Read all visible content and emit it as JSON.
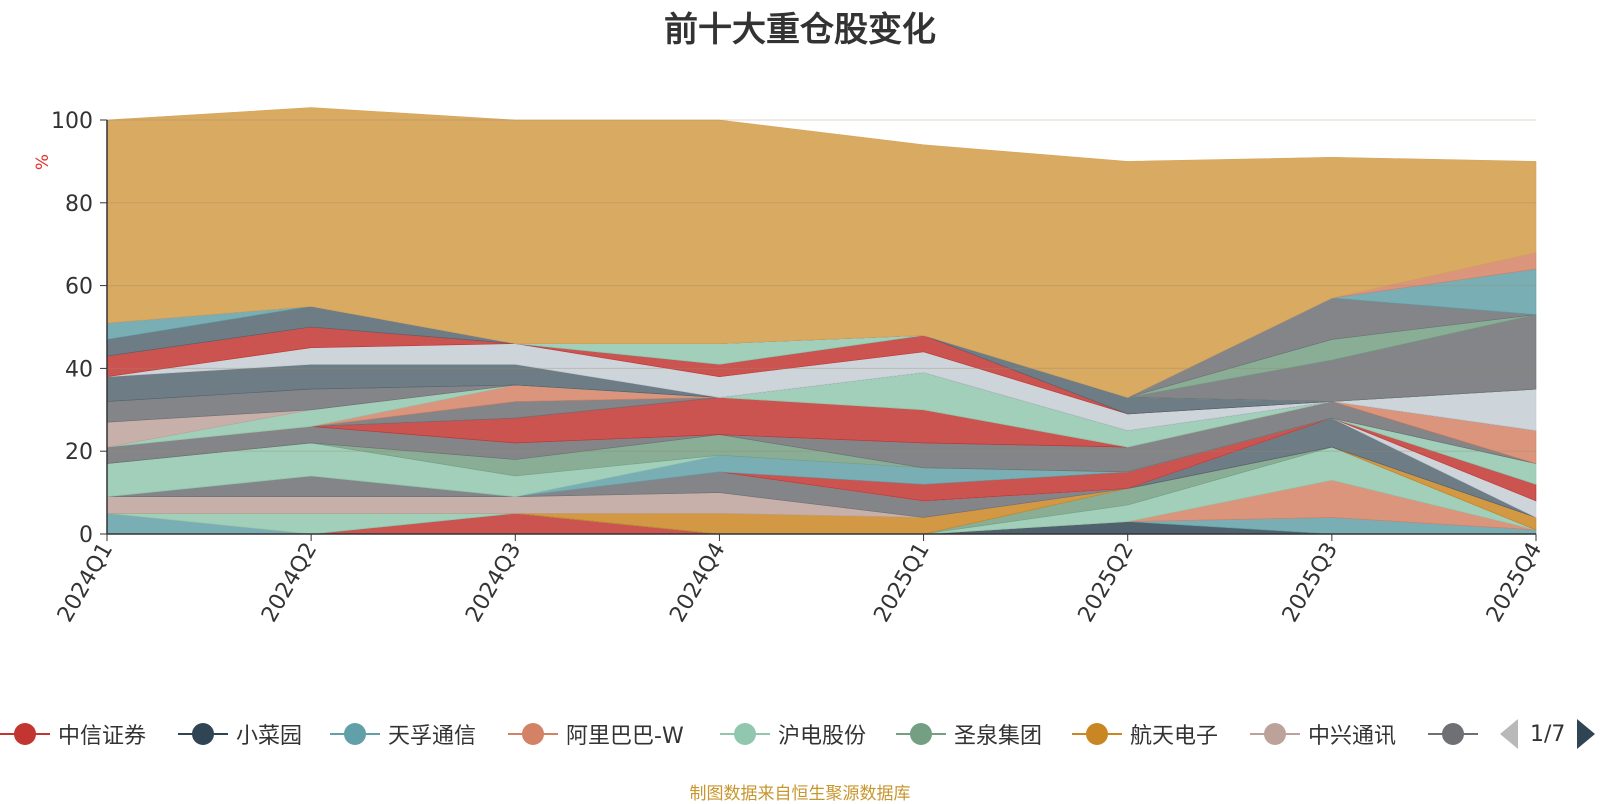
{
  "chart_data": {
    "type": "area",
    "title": "前十大重仓股变化",
    "ylabel": "%",
    "ylim": [
      0,
      100
    ],
    "yticks": [
      0,
      20,
      40,
      60,
      80,
      100
    ],
    "categories": [
      "2024Q1",
      "2024Q2",
      "2024Q3",
      "2024Q4",
      "2025Q1",
      "2025Q2",
      "2025Q3",
      "2025Q4"
    ],
    "series": [
      {
        "name": "中信证券",
        "color": "#c23531",
        "values": [
          0,
          0,
          5,
          0,
          0,
          0,
          0,
          0
        ]
      },
      {
        "name": "小菜园",
        "color": "#2f4554",
        "values": [
          0,
          0,
          0,
          0,
          0,
          3,
          0,
          0
        ]
      },
      {
        "name": "天孚通信",
        "color": "#61a0a8",
        "values": [
          5,
          0,
          0,
          0,
          0,
          0,
          4,
          1
        ]
      },
      {
        "name": "阿里巴巴-W",
        "color": "#d48265",
        "values": [
          0,
          0,
          0,
          0,
          0,
          0,
          9,
          0
        ]
      },
      {
        "name": "沪电股份",
        "color": "#91c7ae",
        "values": [
          0,
          5,
          0,
          0,
          0,
          4,
          8,
          0
        ]
      },
      {
        "name": "圣泉集团",
        "color": "#749f83",
        "values": [
          0,
          0,
          0,
          0,
          0,
          4,
          0,
          0
        ]
      },
      {
        "name": "航天电子",
        "color": "#ca8622",
        "values": [
          0,
          0,
          0,
          5,
          4,
          0,
          0,
          3
        ]
      },
      {
        "name": "中兴通讯",
        "color": "#bda29a",
        "values": [
          4,
          4,
          4,
          5,
          0,
          0,
          0,
          0
        ]
      },
      {
        "name": "",
        "color": "#6e7074",
        "values": [
          0,
          5,
          0,
          5,
          4,
          0,
          0,
          0
        ]
      },
      {
        "name": "",
        "color": "#546570",
        "values": [
          0,
          0,
          0,
          0,
          0,
          0,
          7,
          0
        ]
      },
      {
        "name": "",
        "color": "#c4ccd3",
        "values": [
          0,
          0,
          0,
          0,
          0,
          0,
          0,
          4
        ]
      },
      {
        "name": "",
        "color": "#c23531",
        "values": [
          0,
          0,
          0,
          0,
          4,
          4,
          0,
          4
        ]
      },
      {
        "name": "",
        "color": "#61a0a8",
        "values": [
          0,
          0,
          0,
          4,
          4,
          0,
          0,
          0
        ]
      },
      {
        "name": "",
        "color": "#91c7ae",
        "values": [
          8,
          8,
          5,
          0,
          0,
          0,
          0,
          5
        ]
      },
      {
        "name": "",
        "color": "#749f83",
        "values": [
          0,
          0,
          4,
          5,
          0,
          0,
          0,
          0
        ]
      },
      {
        "name": "",
        "color": "#6e7074",
        "values": [
          4,
          4,
          4,
          0,
          6,
          6,
          4,
          0
        ]
      },
      {
        "name": "",
        "color": "#c23531",
        "values": [
          0,
          0,
          6,
          9,
          8,
          0,
          0,
          0
        ]
      },
      {
        "name": "",
        "color": "#6e7074",
        "values": [
          0,
          0,
          4,
          0,
          0,
          0,
          0,
          0
        ]
      },
      {
        "name": "",
        "color": "#d48265",
        "values": [
          0,
          0,
          4,
          0,
          0,
          0,
          0,
          8
        ]
      },
      {
        "name": "",
        "color": "#91c7ae",
        "values": [
          0,
          4,
          0,
          0,
          9,
          4,
          0,
          0
        ]
      },
      {
        "name": "",
        "color": "#bda29a",
        "values": [
          6,
          0,
          0,
          0,
          0,
          0,
          0,
          0
        ]
      },
      {
        "name": "",
        "color": "#6e7074",
        "values": [
          5,
          5,
          0,
          0,
          0,
          0,
          0,
          0
        ]
      },
      {
        "name": "",
        "color": "#546570",
        "values": [
          6,
          6,
          5,
          0,
          0,
          0,
          0,
          0
        ]
      },
      {
        "name": "",
        "color": "#c4ccd3",
        "values": [
          0,
          4,
          5,
          5,
          5,
          4,
          0,
          10
        ]
      },
      {
        "name": "",
        "color": "#c23531",
        "values": [
          5,
          5,
          0,
          3,
          4,
          0,
          0,
          0
        ]
      },
      {
        "name": "",
        "color": "#546570",
        "values": [
          4,
          5,
          0,
          0,
          0,
          4,
          0,
          0
        ]
      },
      {
        "name": "",
        "color": "#61a0a8",
        "values": [
          4,
          0,
          0,
          0,
          0,
          0,
          0,
          0
        ]
      },
      {
        "name": "",
        "color": "#91c7ae",
        "values": [
          0,
          0,
          0,
          5,
          0,
          0,
          0,
          0
        ]
      },
      {
        "name": "",
        "color": "#6e7074",
        "values": [
          0,
          0,
          0,
          0,
          0,
          0,
          10,
          18
        ]
      },
      {
        "name": "",
        "color": "#749f83",
        "values": [
          0,
          0,
          0,
          0,
          0,
          0,
          5,
          0
        ]
      },
      {
        "name": "",
        "color": "#6e7074",
        "values": [
          0,
          0,
          0,
          0,
          0,
          0,
          10,
          0
        ]
      },
      {
        "name": "",
        "color": "#61a0a8",
        "values": [
          0,
          0,
          0,
          0,
          0,
          0,
          0,
          11
        ]
      },
      {
        "name": "",
        "color": "#d48265",
        "values": [
          0,
          0,
          0,
          0,
          0,
          0,
          0,
          4
        ]
      },
      {
        "name": "",
        "color": "#d6a55a",
        "values": [
          49,
          48,
          54,
          54,
          46,
          57,
          34,
          22
        ]
      }
    ]
  },
  "legend": {
    "items": [
      {
        "name": "中信证券",
        "color": "#c23531"
      },
      {
        "name": "小菜园",
        "color": "#2f4554"
      },
      {
        "name": "天孚通信",
        "color": "#61a0a8"
      },
      {
        "name": "阿里巴巴-W",
        "color": "#d48265"
      },
      {
        "name": "沪电股份",
        "color": "#91c7ae"
      },
      {
        "name": "圣泉集团",
        "color": "#749f83"
      },
      {
        "name": "航天电子",
        "color": "#ca8622"
      },
      {
        "name": "中兴通讯",
        "color": "#bda29a"
      },
      {
        "name": "",
        "color": "#6e7074"
      }
    ],
    "page": "1/7"
  },
  "source": "制图数据来自恒生聚源数据库"
}
